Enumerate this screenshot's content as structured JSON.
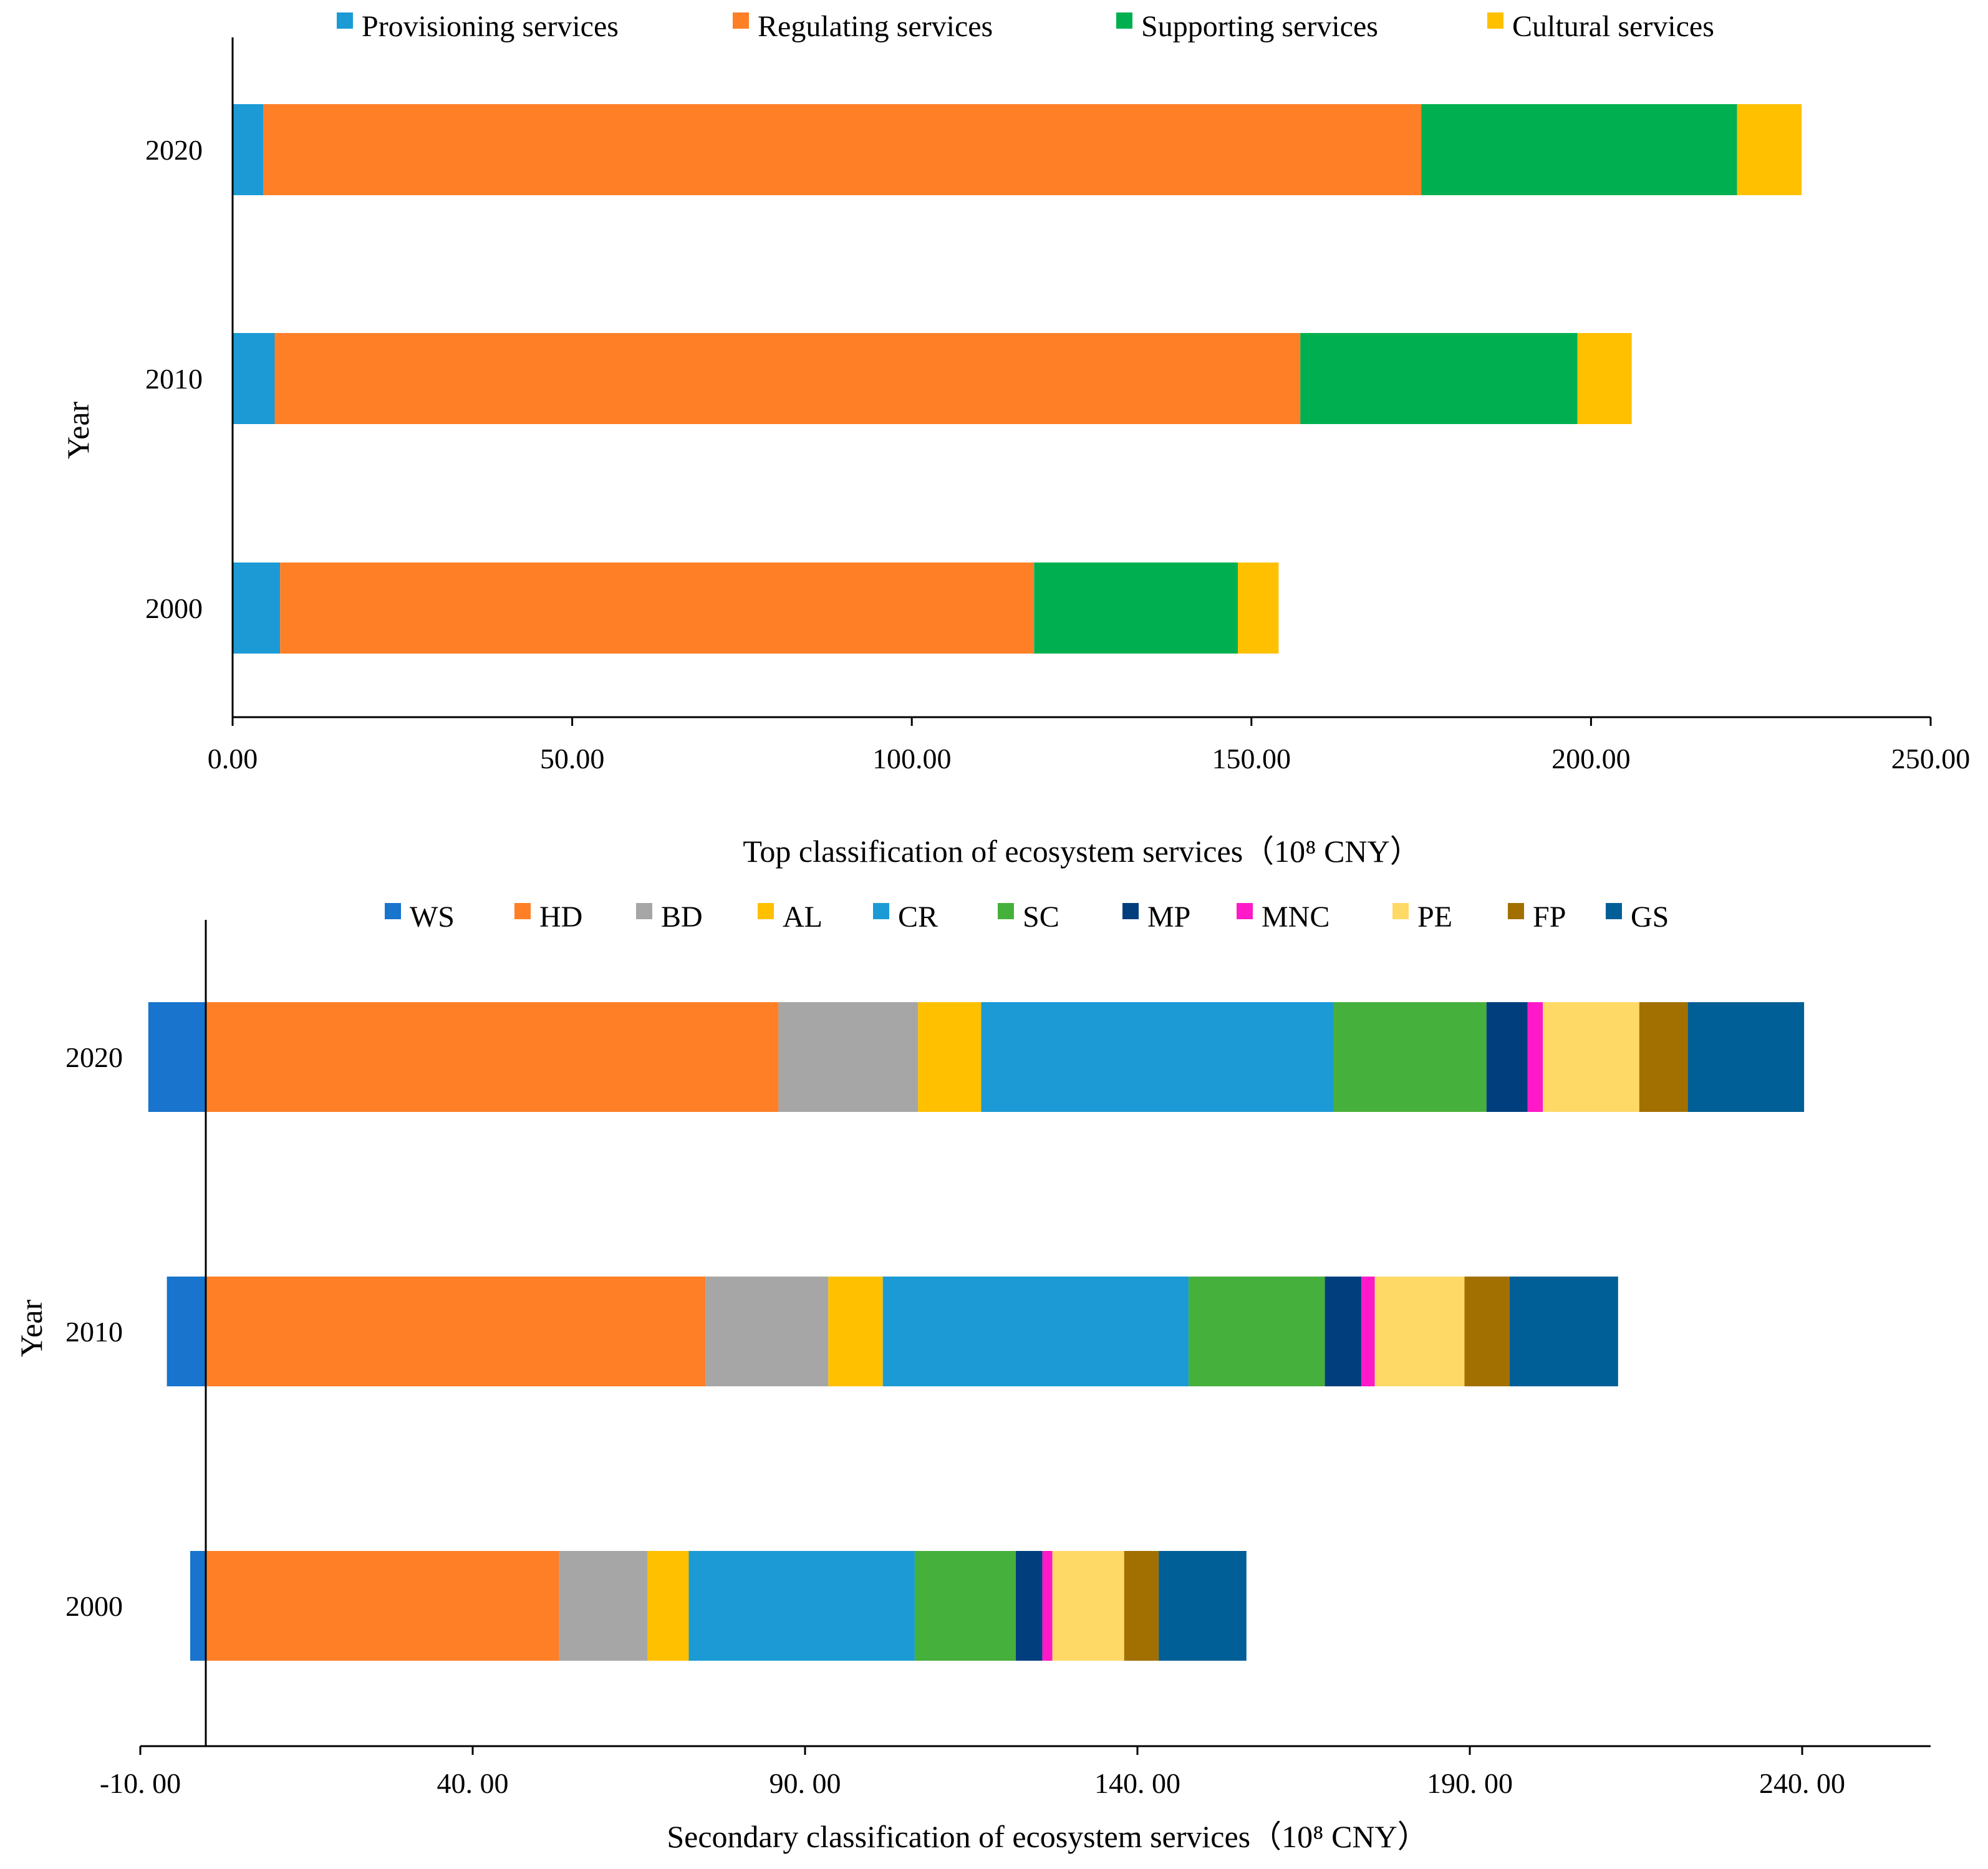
{
  "chart_data": [
    {
      "type": "bar",
      "orientation": "horizontal",
      "stacked": true,
      "xlabel": "Top classification of ecosystem services（10⁸ CNY）",
      "ylabel": "Year",
      "xlim": [
        0,
        250
      ],
      "x_ticks": [
        "0.00",
        "50.00",
        "100.00",
        "150.00",
        "200.00",
        "250.00"
      ],
      "categories": [
        "2020",
        "2010",
        "2000"
      ],
      "series": [
        {
          "name": "Provisioning services",
          "color": "#1B9AD6",
          "values": [
            4.5,
            6.2,
            7.0
          ]
        },
        {
          "name": "Regulating services",
          "color": "#FF7F27",
          "values": [
            170.5,
            151.0,
            111.0
          ]
        },
        {
          "name": "Supporting services",
          "color": "#00B050",
          "values": [
            46.5,
            40.8,
            30.0
          ]
        },
        {
          "name": "Cultural services",
          "color": "#FFC000",
          "values": [
            9.5,
            8.0,
            6.0
          ]
        }
      ],
      "legend": "top",
      "grid": false
    },
    {
      "type": "bar",
      "orientation": "horizontal",
      "stacked": true,
      "xlabel": "Secondary classification of ecosystem services（10⁸ CNY）",
      "ylabel": "Year",
      "xlim": [
        -10,
        260
      ],
      "x_ticks": [
        "-10. 00",
        "40. 00",
        "90. 00",
        "140. 00",
        "190. 00",
        "240. 00"
      ],
      "categories": [
        "2020",
        "2010",
        "2000"
      ],
      "series": [
        {
          "name": "WS",
          "color": "#1874CD",
          "values": [
            -8.8,
            -6.0,
            -2.5
          ]
        },
        {
          "name": "HD",
          "color": "#FF7F27",
          "values": [
            86.0,
            75.0,
            53.0
          ]
        },
        {
          "name": "BD",
          "color": "#A6A6A6",
          "values": [
            21.0,
            18.5,
            13.3
          ]
        },
        {
          "name": "AL",
          "color": "#FFC000",
          "values": [
            9.5,
            8.2,
            6.2
          ]
        },
        {
          "name": "CR",
          "color": "#1B9AD6",
          "values": [
            53.0,
            46.0,
            34.0
          ]
        },
        {
          "name": "SC",
          "color": "#46B03C",
          "values": [
            23.0,
            20.5,
            15.2
          ]
        },
        {
          "name": "MP",
          "color": "#003E7E",
          "values": [
            6.2,
            5.5,
            4.0
          ]
        },
        {
          "name": "MNC",
          "color": "#FF19C8",
          "values": [
            2.3,
            2.0,
            1.5
          ]
        },
        {
          "name": "PE",
          "color": "#FFD966",
          "values": [
            14.5,
            13.5,
            10.8
          ]
        },
        {
          "name": "FP",
          "color": "#A27000",
          "values": [
            7.3,
            6.8,
            5.2
          ]
        },
        {
          "name": "GS",
          "color": "#005F96",
          "values": [
            17.5,
            16.3,
            13.2
          ]
        }
      ],
      "legend": "top",
      "grid": false
    }
  ]
}
